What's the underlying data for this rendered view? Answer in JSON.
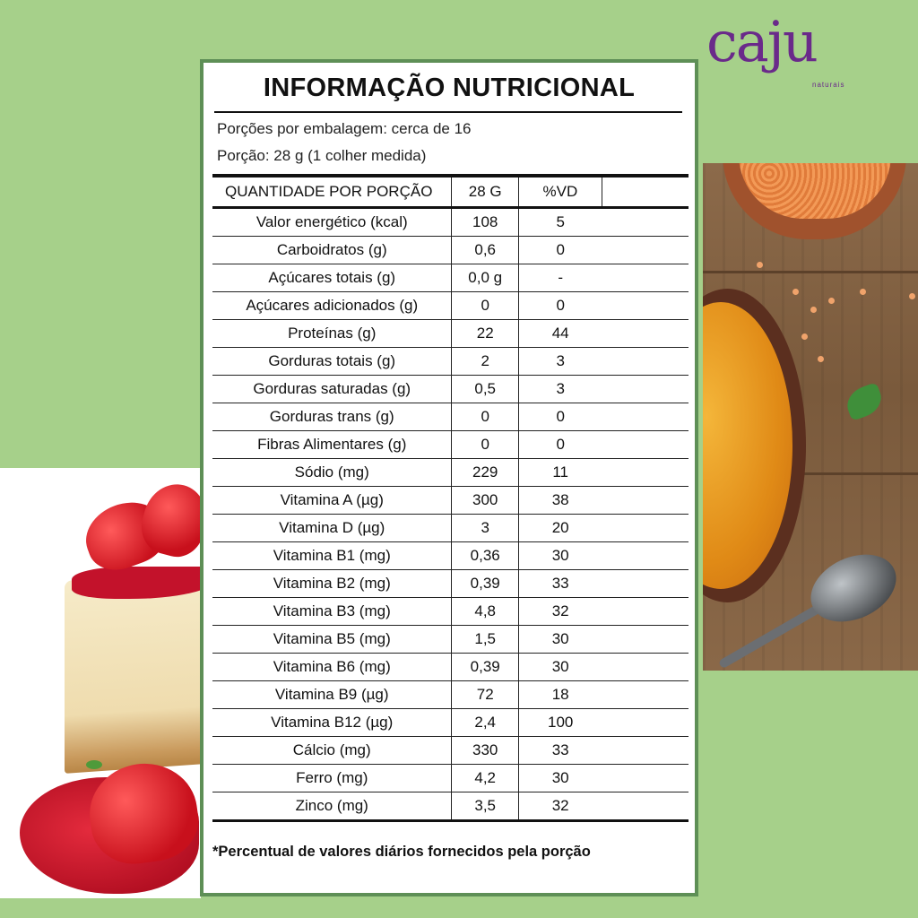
{
  "brand": {
    "logo_text": "caju",
    "logo_sub": "naturais"
  },
  "panel": {
    "title": "INFORMAÇÃO NUTRICIONAL",
    "servings_per_package": "Porções por embalagem: cerca de 16",
    "serving_size": "Porção: 28 g (1 colher medida)",
    "headers": {
      "name": "QUANTIDADE POR PORÇÃO",
      "qty": "28 G",
      "vd": "%VD"
    },
    "rows": [
      {
        "name": "Valor energético (kcal)",
        "qty": "108",
        "vd": "5"
      },
      {
        "name": "Carboidratos (g)",
        "qty": "0,6",
        "vd": "0"
      },
      {
        "name": "Açúcares totais (g)",
        "qty": "0,0 g",
        "vd": "-"
      },
      {
        "name": "Açúcares adicionados (g)",
        "qty": "0",
        "vd": "0"
      },
      {
        "name": "Proteínas (g)",
        "qty": "22",
        "vd": "44"
      },
      {
        "name": "Gorduras totais (g)",
        "qty": "2",
        "vd": "3"
      },
      {
        "name": "Gorduras saturadas (g)",
        "qty": "0,5",
        "vd": "3"
      },
      {
        "name": "Gorduras trans (g)",
        "qty": "0",
        "vd": "0"
      },
      {
        "name": "Fibras Alimentares (g)",
        "qty": "0",
        "vd": "0"
      },
      {
        "name": "Sódio (mg)",
        "qty": "229",
        "vd": "11"
      },
      {
        "name": "Vitamina A (µg)",
        "qty": "300",
        "vd": "38"
      },
      {
        "name": "Vitamina D (µg)",
        "qty": "3",
        "vd": "20"
      },
      {
        "name": "Vitamina B1 (mg)",
        "qty": "0,36",
        "vd": "30"
      },
      {
        "name": "Vitamina B2 (mg)",
        "qty": "0,39",
        "vd": "33"
      },
      {
        "name": "Vitamina B3 (mg)",
        "qty": "4,8",
        "vd": "32"
      },
      {
        "name": "Vitamina B5 (mg)",
        "qty": "1,5",
        "vd": "30"
      },
      {
        "name": "Vitamina B6 (mg)",
        "qty": "0,39",
        "vd": "30"
      },
      {
        "name": "Vitamina B9 (µg)",
        "qty": "72",
        "vd": "18"
      },
      {
        "name": "Vitamina B12 (µg)",
        "qty": "2,4",
        "vd": "100"
      },
      {
        "name": "Cálcio (mg)",
        "qty": "330",
        "vd": "33"
      },
      {
        "name": "Ferro (mg)",
        "qty": "4,2",
        "vd": "30"
      },
      {
        "name": "Zinco (mg)",
        "qty": "3,5",
        "vd": "32"
      }
    ],
    "footnote": "*Percentual de valores diários fornecidos pela porção"
  },
  "colors": {
    "background_green": "#a6d08a",
    "panel_border": "#5e8f56",
    "logo_purple": "#6a2a8a"
  }
}
